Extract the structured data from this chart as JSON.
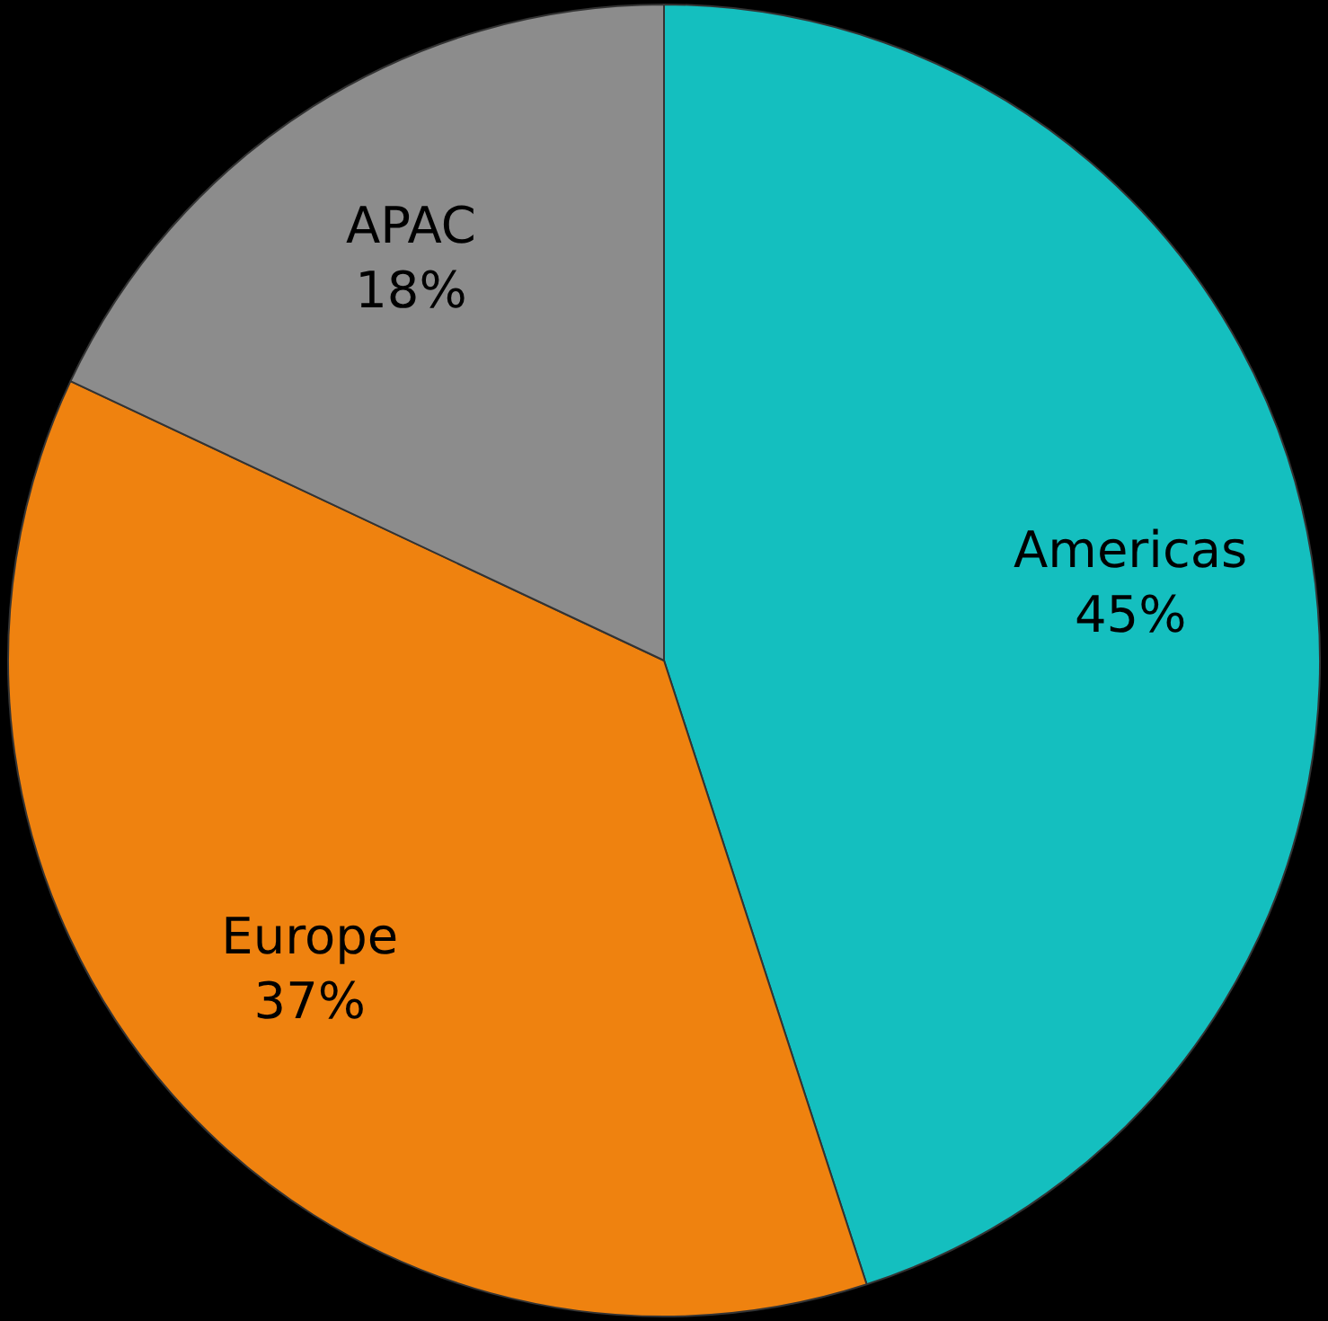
{
  "chart_data": {
    "type": "pie",
    "categories": [
      "Americas",
      "Europe",
      "APAC"
    ],
    "values": [
      45,
      37,
      18
    ],
    "colors": [
      "#14bfbf",
      "#ef820f",
      "#8c8c8c"
    ],
    "value_labels": [
      "45%",
      "37%",
      "18%"
    ],
    "legend": false
  }
}
